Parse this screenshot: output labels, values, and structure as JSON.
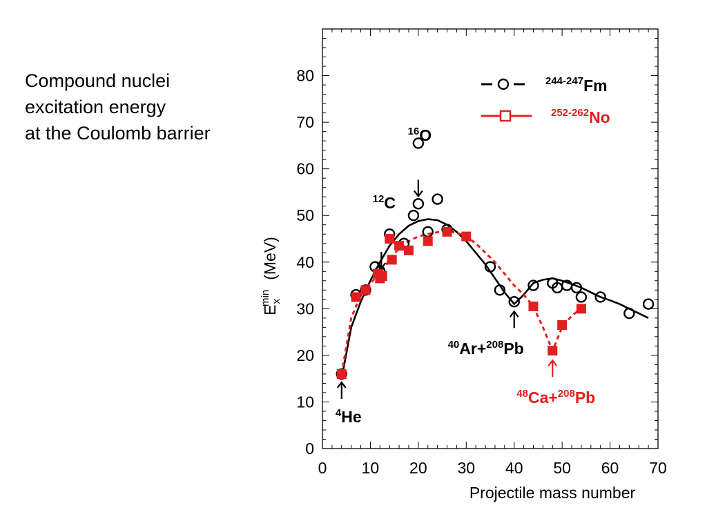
{
  "caption": {
    "lines": [
      "Compound nuclei",
      "excitation energy",
      "at the Coulomb barrier"
    ]
  },
  "chart_data": {
    "type": "scatter",
    "title": "",
    "xlabel": "Projectile mass number",
    "ylabel": {
      "main": "E",
      "sup": "min",
      "sub": "x",
      "unit": "(MeV)"
    },
    "xlim": [
      0,
      70
    ],
    "ylim": [
      0,
      90
    ],
    "x_ticks": [
      "0",
      "10",
      "20",
      "30",
      "40",
      "50",
      "60",
      "70"
    ],
    "y_ticks": [
      "0",
      "10",
      "20",
      "30",
      "40",
      "50",
      "60",
      "70",
      "80"
    ],
    "grid": false,
    "legend_position": "top-right",
    "series": [
      {
        "legend_sup": "244-247",
        "legend_main": "Fm",
        "color": "#000000",
        "marker": "open-circle",
        "line": "solid",
        "points": [
          [
            4,
            16
          ],
          [
            7,
            33
          ],
          [
            9,
            34
          ],
          [
            11,
            39
          ],
          [
            12,
            38
          ],
          [
            14,
            46
          ],
          [
            17,
            44
          ],
          [
            19,
            50
          ],
          [
            20,
            52.5
          ],
          [
            20,
            65.5
          ],
          [
            22,
            46.5
          ],
          [
            24,
            53.5
          ],
          [
            26,
            47
          ],
          [
            35,
            39
          ],
          [
            37,
            34
          ],
          [
            40,
            31.5
          ],
          [
            44,
            35
          ],
          [
            48,
            35.5
          ],
          [
            49,
            34.5
          ],
          [
            51,
            35
          ],
          [
            53,
            34.5
          ],
          [
            54,
            32.5
          ],
          [
            58,
            32.5
          ],
          [
            64,
            29
          ],
          [
            68,
            31
          ]
        ],
        "fit_curve": [
          [
            4,
            15
          ],
          [
            6,
            26
          ],
          [
            8,
            31.5
          ],
          [
            10,
            36
          ],
          [
            12,
            40
          ],
          [
            14,
            43.5
          ],
          [
            16,
            46
          ],
          [
            18,
            47.8
          ],
          [
            20,
            48.8
          ],
          [
            22,
            49.2
          ],
          [
            24,
            49
          ],
          [
            26,
            48
          ],
          [
            28,
            46.5
          ],
          [
            30,
            44.5
          ],
          [
            32,
            42
          ],
          [
            34,
            39.5
          ],
          [
            36,
            36.5
          ],
          [
            38,
            33.5
          ],
          [
            40,
            31
          ],
          [
            42,
            33
          ],
          [
            44,
            35.5
          ],
          [
            46,
            36.2
          ],
          [
            48,
            36.5
          ],
          [
            50,
            36
          ],
          [
            52,
            35.3
          ],
          [
            54,
            34.5
          ],
          [
            56,
            33.5
          ],
          [
            58,
            32.5
          ],
          [
            60,
            31.8
          ],
          [
            62,
            31
          ],
          [
            64,
            30
          ],
          [
            66,
            29
          ],
          [
            68,
            28
          ]
        ]
      },
      {
        "legend_sup": "252-262",
        "legend_main": "No",
        "color": "#e02020",
        "marker": "filled-square",
        "line": "dashed",
        "points": [
          [
            4,
            16
          ],
          [
            7,
            32.5
          ],
          [
            9,
            34
          ],
          [
            11.5,
            37.5
          ],
          [
            12,
            36.5
          ],
          [
            12.5,
            37
          ],
          [
            14,
            45
          ],
          [
            14.5,
            40.5
          ],
          [
            16,
            43.5
          ],
          [
            18,
            42.5
          ],
          [
            22,
            44.5
          ],
          [
            26,
            46.5
          ],
          [
            30,
            45.5
          ],
          [
            44,
            30.5
          ],
          [
            48,
            21
          ],
          [
            50,
            26.5
          ],
          [
            54,
            30
          ]
        ],
        "fit_curve": [
          [
            4,
            16
          ],
          [
            6,
            28
          ],
          [
            8,
            33
          ],
          [
            10,
            35.5
          ],
          [
            12,
            37.5
          ],
          [
            14,
            40.5
          ],
          [
            16,
            43
          ],
          [
            18,
            44.5
          ],
          [
            20,
            45.5
          ],
          [
            22,
            46
          ],
          [
            24,
            46.4
          ],
          [
            26,
            46.6
          ],
          [
            28,
            46.3
          ],
          [
            30,
            45.5
          ],
          [
            32,
            44
          ],
          [
            34,
            42
          ],
          [
            36,
            40
          ],
          [
            38,
            37.5
          ],
          [
            40,
            35
          ],
          [
            42,
            33
          ],
          [
            44,
            30.5
          ],
          [
            46,
            26
          ],
          [
            48,
            21
          ],
          [
            50,
            26
          ],
          [
            52,
            28.5
          ],
          [
            54,
            30
          ]
        ]
      }
    ],
    "annotations": [
      {
        "sup": "4",
        "text": "He",
        "color": "#000000",
        "arrow_at": [
          4,
          16
        ]
      },
      {
        "sup": "12",
        "text": "C",
        "color": "#000000",
        "arrow_at": [
          12,
          41
        ]
      },
      {
        "sup": "16",
        "text": "O",
        "color": "#000000",
        "arrow_at": [
          20,
          55
        ]
      },
      {
        "sup1": "40",
        "text1": "Ar+",
        "sup2": "208",
        "text2": "Pb",
        "color": "#000000",
        "arrow_at": [
          40,
          30
        ]
      },
      {
        "sup1": "48",
        "text1": "Ca+",
        "sup2": "208",
        "text2": "Pb",
        "color": "#e02020",
        "arrow_at": [
          48,
          19.5
        ]
      }
    ]
  }
}
